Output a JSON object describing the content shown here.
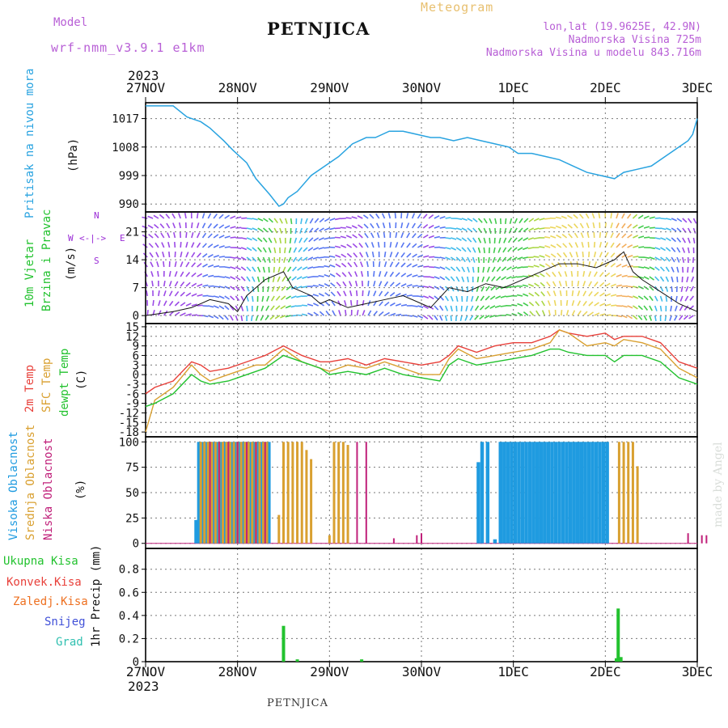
{
  "header": {
    "model_label": "Model",
    "model_name": "wrf-nmm_v3.9.1 e1km",
    "station": "PETNJICA",
    "meteogram_label": "Meteogram",
    "coords": "lon,lat (19.9625E, 42.9N)",
    "altitude": "Nadmorska Visina 725m",
    "model_altitude": "Nadmorska Visina u modelu 843.716m",
    "year_top": "2023",
    "year_bottom": "2023",
    "footer_station": "PETNJICA",
    "credit": "made by Angel"
  },
  "colors": {
    "pressure": "#29a3e0",
    "wind_label": "#22c22e",
    "wind_ylabel": "#000000",
    "wind_dir": "#9a2bd6",
    "temp_2m": "#e8403a",
    "temp_sfc": "#d9a030",
    "temp_dew": "#22c22e",
    "cloud_high": "#1f9be0",
    "cloud_mid": "#d9a030",
    "cloud_low": "#c0207a",
    "precip_total": "#22c22e",
    "precip_conv": "#e8403a",
    "precip_frz": "#ee7020",
    "precip_snow": "#4050d8",
    "precip_grad": "#30c0b0"
  },
  "chart_data": [
    {
      "type": "line",
      "panel": "pressure",
      "ylabel_name": "Pritisak na nivou mora",
      "ylabel_unit": "(hPa)",
      "yticks": [
        990,
        999,
        1008,
        1017
      ],
      "ylim": [
        987.5,
        1022
      ],
      "x_categories": [
        "27NOV",
        "28NOV",
        "29NOV",
        "30NOV",
        "1DEC",
        "2DEC",
        "3DEC"
      ],
      "grid": true,
      "series": [
        {
          "x": [
            0,
            0.1,
            0.3,
            0.45,
            0.5,
            0.6,
            0.7,
            0.85,
            0.95,
            1.1,
            1.2,
            1.35,
            1.45,
            1.5,
            1.55,
            1.65,
            1.8,
            1.95,
            2.1,
            2.25,
            2.4,
            2.5,
            2.65,
            2.8,
            2.95,
            3.1,
            3.2,
            3.35,
            3.5,
            3.65,
            3.8,
            3.95,
            4.05,
            4.2,
            4.35,
            4.5,
            4.65,
            4.8,
            4.95,
            5.1,
            5.15,
            5.2,
            5.35,
            5.5,
            5.65,
            5.8,
            5.9,
            5.95,
            6.0
          ],
          "values": [
            1021,
            1021,
            1021,
            1017.5,
            1017,
            1016,
            1014,
            1010,
            1007,
            1003,
            998,
            993,
            989.3,
            990,
            992,
            994,
            999,
            1002,
            1005,
            1009,
            1011,
            1011,
            1013,
            1013,
            1012,
            1011,
            1011,
            1010,
            1011,
            1010,
            1009,
            1008,
            1006,
            1006,
            1005,
            1004,
            1002,
            1000,
            999,
            998,
            999,
            1000,
            1001,
            1002,
            1005,
            1008,
            1010,
            1012,
            1017
          ]
        }
      ]
    },
    {
      "type": "line",
      "panel": "wind",
      "ylabel_name_1": "10m Vjetar",
      "ylabel_name_2": "Brzina i Pravac",
      "ylabel_unit": "(m/s)",
      "yticks": [
        0,
        7,
        14,
        21
      ],
      "ylim": [
        -2,
        26
      ],
      "compass": {
        "n": "N",
        "e": "E",
        "w": "W",
        "s": "S"
      },
      "grid": true,
      "series": [
        {
          "name": "speed",
          "x": [
            0,
            0.3,
            0.5,
            0.7,
            0.9,
            1.0,
            1.1,
            1.3,
            1.5,
            1.6,
            1.8,
            1.9,
            2.0,
            2.2,
            2.4,
            2.6,
            2.8,
            3.0,
            3.1,
            3.3,
            3.5,
            3.7,
            3.9,
            4.1,
            4.3,
            4.5,
            4.7,
            4.9,
            5.1,
            5.2,
            5.3,
            5.4,
            5.6,
            5.8,
            6.0
          ],
          "values": [
            0,
            1,
            2,
            4,
            3,
            1,
            5,
            9,
            11,
            7,
            5,
            3,
            4,
            2,
            3,
            4,
            5,
            3,
            2,
            7,
            6,
            8,
            7,
            9,
            11,
            13,
            13,
            12,
            14,
            16,
            11,
            9,
            6,
            3,
            1
          ]
        }
      ]
    },
    {
      "type": "line",
      "panel": "temperature",
      "ylabel_2m": "2m Temp",
      "ylabel_sfc": "SFC Temp",
      "ylabel_dew": "dewpt Temp",
      "ylabel_unit": "(C)",
      "yticks": [
        -18,
        -15,
        -12,
        -9,
        -6,
        -3,
        0,
        3,
        6,
        9,
        12,
        15
      ],
      "ylim": [
        -19.5,
        16
      ],
      "grid": true,
      "x": [
        0,
        0.1,
        0.3,
        0.5,
        0.6,
        0.7,
        0.9,
        1.0,
        1.2,
        1.3,
        1.5,
        1.7,
        1.9,
        2.0,
        2.2,
        2.4,
        2.6,
        2.8,
        3.0,
        3.2,
        3.3,
        3.4,
        3.6,
        3.8,
        4.0,
        4.2,
        4.4,
        4.5,
        4.6,
        4.8,
        5.0,
        5.1,
        5.2,
        5.4,
        5.6,
        5.8,
        6.0
      ],
      "series": [
        {
          "name": "2m",
          "values": [
            -6,
            -4,
            -2,
            4,
            3,
            1,
            2,
            3,
            5,
            6,
            9,
            6,
            4,
            4,
            5,
            3,
            5,
            4,
            3,
            4,
            6,
            9,
            7,
            9,
            10,
            10,
            12,
            14,
            13,
            12,
            13,
            11,
            12,
            12,
            10,
            4,
            2
          ]
        },
        {
          "name": "SFC",
          "values": [
            -18,
            -8,
            -4,
            3,
            0,
            -2,
            0,
            1,
            3,
            3,
            8,
            4,
            2,
            1,
            3,
            2,
            4,
            2,
            0,
            0,
            5,
            8,
            5,
            6,
            7,
            8,
            10,
            14,
            13,
            9,
            10,
            9,
            11,
            10,
            8,
            2,
            -1
          ]
        },
        {
          "name": "dewpt",
          "values": [
            -10,
            -9,
            -6,
            0,
            -2,
            -3,
            -2,
            -1,
            1,
            2,
            6,
            4,
            2,
            0,
            1,
            0,
            2,
            0,
            -1,
            -2,
            3,
            5,
            3,
            4,
            5,
            6,
            8,
            8,
            7,
            6,
            6,
            4,
            6,
            6,
            4,
            -1,
            -3
          ]
        }
      ]
    },
    {
      "type": "bar",
      "panel": "clouds",
      "ylabel_high": "Visoka Oblacnost",
      "ylabel_mid": "Srednja Oblacnost",
      "ylabel_low": "Niska Oblacnost",
      "ylabel_unit": "(%)",
      "yticks": [
        0,
        25,
        50,
        75,
        100
      ],
      "ylim": [
        -5,
        105
      ],
      "grid": true,
      "series": [
        {
          "name": "high",
          "x": [
            0.55,
            0.58,
            0.62,
            0.66,
            0.7,
            0.74,
            0.78,
            0.82,
            0.86,
            0.9,
            0.94,
            0.98,
            1.02,
            1.06,
            1.1,
            1.14,
            1.18,
            1.22,
            1.26,
            1.3,
            1.34,
            3.62,
            3.66,
            3.72,
            3.8,
            3.86,
            3.9,
            3.94,
            3.98,
            4.02,
            4.06,
            4.1,
            4.14,
            4.18,
            4.22,
            4.26,
            4.3,
            4.34,
            4.38,
            4.42,
            4.46,
            4.5,
            4.54,
            4.58,
            4.62,
            4.66,
            4.7,
            4.74,
            4.78,
            4.82,
            4.86,
            4.9,
            4.94,
            4.98,
            5.02
          ],
          "values": [
            23,
            100,
            100,
            100,
            100,
            100,
            100,
            100,
            100,
            100,
            100,
            100,
            100,
            100,
            100,
            100,
            100,
            100,
            100,
            100,
            100,
            80,
            100,
            100,
            4,
            100,
            100,
            100,
            100,
            100,
            100,
            100,
            100,
            100,
            100,
            100,
            100,
            100,
            100,
            100,
            100,
            100,
            100,
            100,
            100,
            100,
            100,
            100,
            100,
            100,
            100,
            100,
            100,
            100,
            100
          ]
        },
        {
          "name": "mid",
          "x": [
            0.6,
            0.64,
            0.68,
            0.72,
            0.76,
            0.8,
            0.84,
            0.88,
            0.92,
            0.96,
            1.0,
            1.04,
            1.08,
            1.12,
            1.16,
            1.2,
            1.24,
            1.28,
            1.32,
            1.45,
            1.5,
            1.55,
            1.6,
            1.65,
            1.7,
            1.75,
            1.8,
            2.0,
            2.05,
            2.1,
            2.15,
            2.2,
            5.15,
            5.2,
            5.25,
            5.3,
            5.35
          ],
          "values": [
            100,
            100,
            100,
            100,
            100,
            100,
            100,
            100,
            100,
            100,
            100,
            100,
            100,
            100,
            100,
            100,
            100,
            100,
            100,
            28,
            100,
            100,
            100,
            100,
            100,
            92,
            83,
            8,
            100,
            100,
            100,
            97,
            100,
            100,
            100,
            100,
            76
          ]
        },
        {
          "name": "low",
          "x": [
            0.7,
            0.8,
            0.9,
            1.0,
            1.1,
            1.2,
            1.3,
            2.3,
            2.4,
            2.7,
            2.95,
            3.0,
            5.9,
            6.05,
            6.1
          ],
          "values": [
            100,
            100,
            100,
            100,
            100,
            100,
            100,
            100,
            100,
            5,
            8,
            10,
            10,
            8,
            8
          ]
        }
      ]
    },
    {
      "type": "bar",
      "panel": "precipitation",
      "ylabel_total": "Ukupna Kisa",
      "ylabel_conv": "Konvek.Kisa",
      "ylabel_frz": "Zaledj.Kisa",
      "ylabel_snow": "Snijeg",
      "ylabel_grad": "Grad",
      "ylabel_unit": "1hr Precip (mm)",
      "yticks": [
        0,
        0.2,
        0.4,
        0.6,
        0.8
      ],
      "ylim": [
        0,
        0.98
      ],
      "grid": true,
      "series": [
        {
          "name": "Ukupna Kisa",
          "x": [
            1.5,
            1.65,
            2.35,
            5.12,
            5.14,
            5.17
          ],
          "values": [
            0.31,
            0.02,
            0.02,
            0.03,
            0.46,
            0.04
          ]
        }
      ]
    }
  ]
}
